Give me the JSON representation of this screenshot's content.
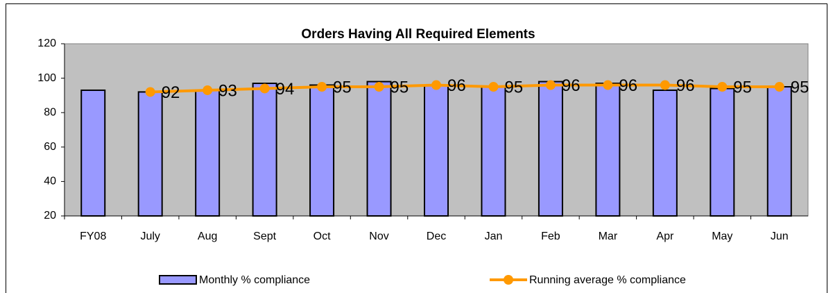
{
  "chart_data": {
    "type": "bar",
    "title": "Orders Having All Required Elements",
    "categories": [
      "FY08",
      "July",
      "Aug",
      "Sept",
      "Oct",
      "Nov",
      "Dec",
      "Jan",
      "Feb",
      "Mar",
      "Apr",
      "May",
      "Jun"
    ],
    "series": [
      {
        "name": "Monthly % compliance",
        "type": "bar",
        "color": "#9999ff",
        "values": [
          93,
          92,
          93,
          97,
          96,
          98,
          96,
          95,
          98,
          97,
          93,
          94,
          95
        ]
      },
      {
        "name": "Running average % compliance",
        "type": "line",
        "color": "#ff9900",
        "values": [
          null,
          92,
          93,
          94,
          95,
          95,
          96,
          95,
          96,
          96,
          96,
          95,
          95
        ]
      }
    ],
    "ylim": [
      20,
      120
    ],
    "yticks": [
      20,
      40,
      60,
      80,
      100,
      120
    ]
  }
}
